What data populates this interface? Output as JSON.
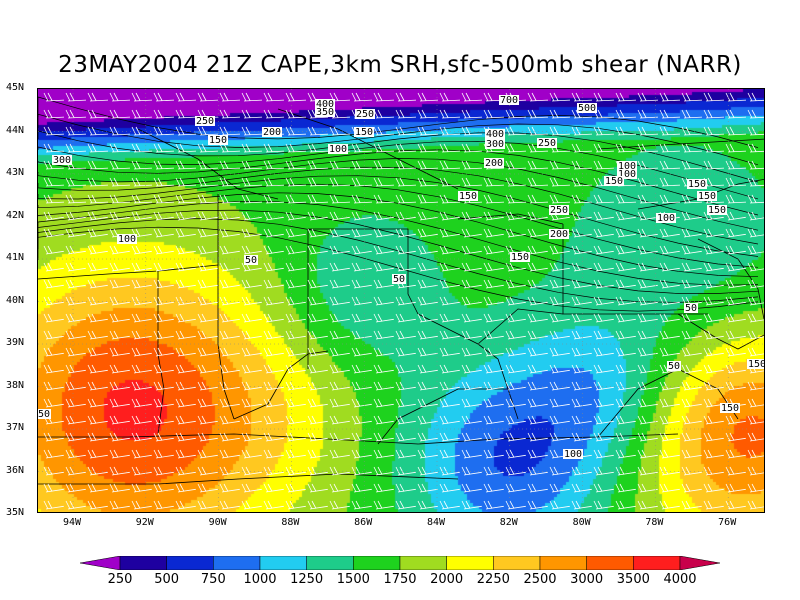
{
  "title": "23MAY2004 21Z CAPE,3km SRH,sfc-500mb shear (NARR)",
  "lat_labels": [
    "45N",
    "44N",
    "43N",
    "42N",
    "41N",
    "40N",
    "39N",
    "38N",
    "37N",
    "36N",
    "35N"
  ],
  "lon_labels": [
    "94W",
    "92W",
    "90W",
    "88W",
    "86W",
    "84W",
    "82W",
    "80W",
    "78W",
    "76W"
  ],
  "colorbar": {
    "levels": [
      "250",
      "500",
      "750",
      "1000",
      "1250",
      "1500",
      "1750",
      "2000",
      "2250",
      "2500",
      "3000",
      "3500",
      "4000"
    ],
    "colors": [
      "#a000c8",
      "#1e00a0",
      "#0a28d2",
      "#1e6ef0",
      "#22ccf0",
      "#1ecc8a",
      "#1ed21e",
      "#a0dc20",
      "#ffff00",
      "#ffc820",
      "#ff9600",
      "#ff5a00",
      "#ff1e1e",
      "#c8004b"
    ]
  },
  "srh_contour_labels": [
    "400",
    "350",
    "250",
    "700",
    "500",
    "250",
    "200",
    "150",
    "150",
    "100",
    "400",
    "300",
    "250",
    "200",
    "150",
    "100",
    "100",
    "150",
    "150",
    "150",
    "100",
    "150",
    "250",
    "200",
    "150",
    "300",
    "100",
    "50",
    "50",
    "50",
    "50",
    "150",
    "150",
    "100",
    "50"
  ]
}
